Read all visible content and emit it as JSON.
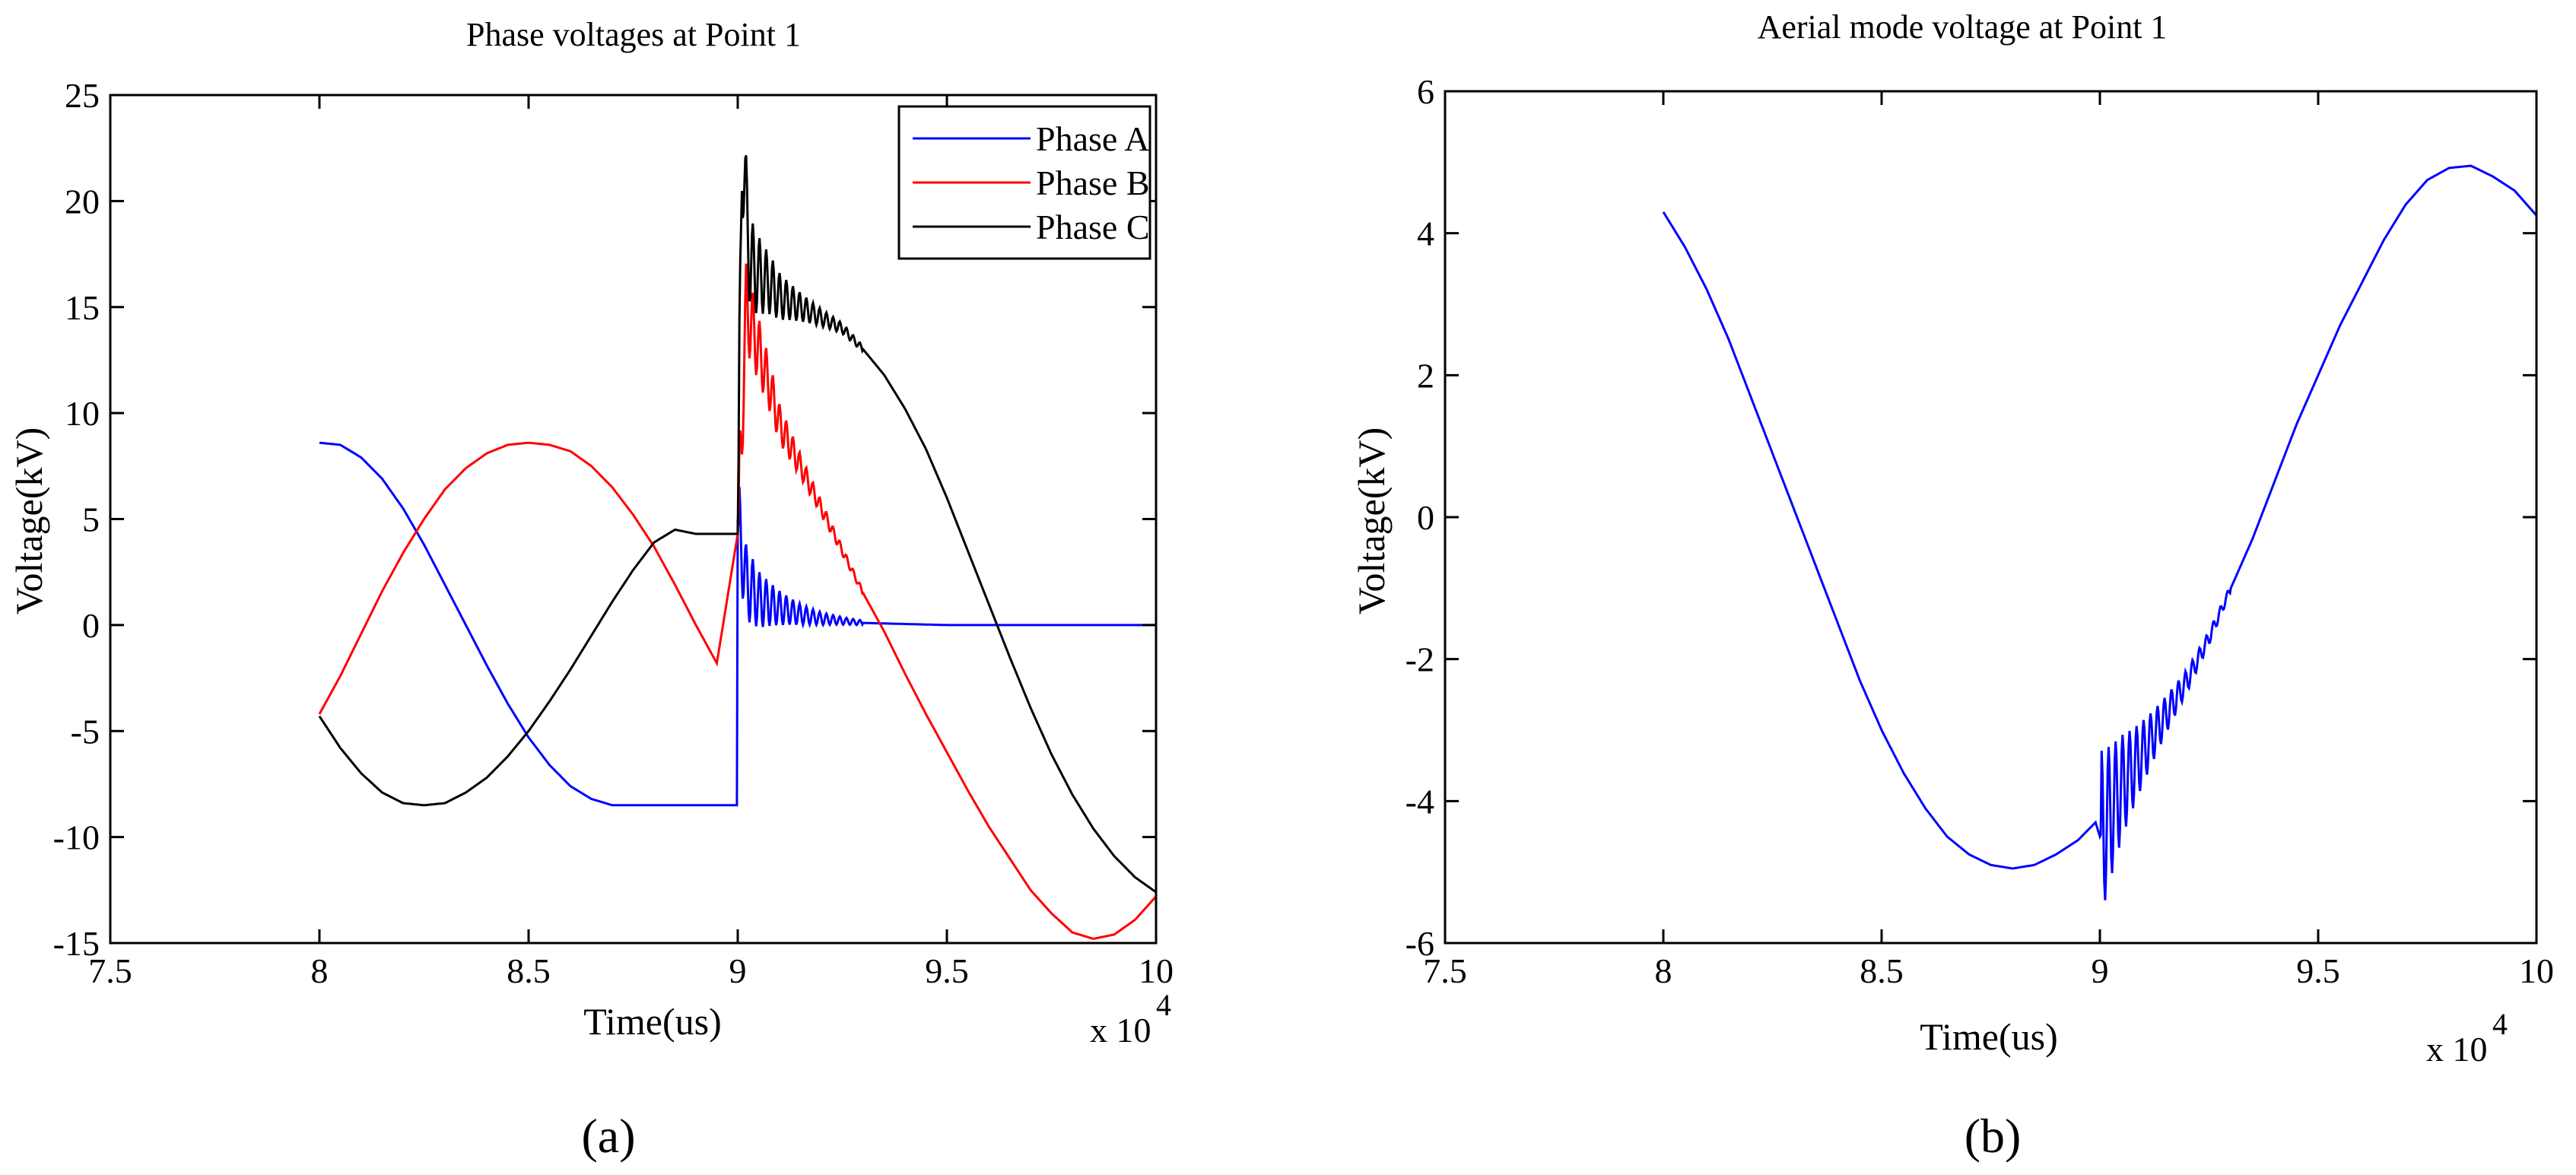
{
  "colors": {
    "phase_a": "#0000ff",
    "phase_b": "#ff0000",
    "phase_c": "#000000",
    "aerial": "#0000ff"
  },
  "chart_data": [
    {
      "type": "line",
      "title": "Phase voltages at Point 1",
      "xlabel": "Time(us)",
      "ylabel": "Voltage(kV)",
      "x_multiplier": "x 10",
      "x_multiplier_exp": "4",
      "xlim": [
        7.5,
        10
      ],
      "ylim": [
        -15,
        25
      ],
      "xticks": [
        7.5,
        8,
        8.5,
        9,
        9.5,
        10
      ],
      "xtick_labels": [
        "7.5",
        "8",
        "8.5",
        "9",
        "9.5",
        "10"
      ],
      "yticks": [
        -15,
        -10,
        -5,
        0,
        5,
        10,
        15,
        20,
        25
      ],
      "ytick_labels": [
        "-15",
        "-10",
        "-5",
        "0",
        "5",
        "10",
        "15",
        "20",
        "25"
      ],
      "grid": false,
      "legend_position": "top-right",
      "panel_label": "(a)",
      "series": [
        {
          "name": "Phase A",
          "color": "#0000ff",
          "x": [
            8.0,
            8.05,
            8.1,
            8.15,
            8.2,
            8.25,
            8.3,
            8.35,
            8.4,
            8.45,
            8.5,
            8.55,
            8.6,
            8.65,
            8.7,
            8.75,
            8.8,
            8.85,
            8.9,
            8.95,
            8.995,
            8.998,
            9.0,
            9.02,
            9.05,
            9.1,
            9.15,
            9.2,
            9.3,
            9.4,
            9.5,
            9.6,
            9.7,
            9.8,
            9.9,
            10.0
          ],
          "y": [
            8.6,
            8.5,
            7.9,
            6.9,
            5.5,
            3.8,
            1.9,
            0.0,
            -1.9,
            -3.7,
            -5.3,
            -6.6,
            -7.6,
            -8.2,
            -8.5,
            -8.5,
            -8.5,
            -8.5,
            -8.5,
            -8.5,
            -8.5,
            -8.5,
            5.0,
            2.0,
            1.2,
            0.8,
            0.5,
            0.3,
            0.1,
            0.05,
            0.0,
            0.0,
            0.0,
            0.0,
            0.0,
            0.0
          ]
        },
        {
          "name": "Phase B",
          "color": "#ff0000",
          "x": [
            8.0,
            8.05,
            8.1,
            8.15,
            8.2,
            8.25,
            8.3,
            8.35,
            8.4,
            8.45,
            8.5,
            8.55,
            8.6,
            8.65,
            8.7,
            8.75,
            8.8,
            8.85,
            8.9,
            8.95,
            9.0,
            9.02,
            9.05,
            9.08,
            9.1,
            9.15,
            9.2,
            9.25,
            9.3,
            9.35,
            9.4,
            9.45,
            9.5,
            9.55,
            9.6,
            9.65,
            9.7,
            9.75,
            9.8,
            9.85,
            9.9,
            9.95,
            10.0
          ],
          "y": [
            -4.2,
            -2.4,
            -0.4,
            1.6,
            3.4,
            5.0,
            6.4,
            7.4,
            8.1,
            8.5,
            8.6,
            8.5,
            8.2,
            7.5,
            6.5,
            5.2,
            3.7,
            1.9,
            0.0,
            -1.8,
            4.3,
            15.0,
            13.0,
            11.0,
            9.5,
            7.5,
            5.5,
            3.5,
            1.5,
            -0.3,
            -2.3,
            -4.2,
            -6.0,
            -7.8,
            -9.5,
            -11.0,
            -12.5,
            -13.6,
            -14.5,
            -14.8,
            -14.6,
            -13.9,
            -12.8
          ]
        },
        {
          "name": "Phase C",
          "color": "#000000",
          "x": [
            8.0,
            8.05,
            8.1,
            8.15,
            8.2,
            8.25,
            8.3,
            8.35,
            8.4,
            8.45,
            8.5,
            8.55,
            8.6,
            8.65,
            8.7,
            8.75,
            8.8,
            8.85,
            8.9,
            8.95,
            9.0,
            9.01,
            9.03,
            9.05,
            9.08,
            9.1,
            9.15,
            9.2,
            9.25,
            9.3,
            9.35,
            9.4,
            9.45,
            9.5,
            9.55,
            9.6,
            9.65,
            9.7,
            9.75,
            9.8,
            9.85,
            9.9,
            9.95,
            10.0
          ],
          "y": [
            -4.3,
            -5.8,
            -7.0,
            -7.9,
            -8.4,
            -8.5,
            -8.4,
            -7.9,
            -7.2,
            -6.2,
            -5.0,
            -3.6,
            -2.1,
            -0.5,
            1.1,
            2.6,
            3.9,
            4.5,
            4.3,
            4.3,
            4.3,
            22.4,
            17.0,
            16.5,
            16.0,
            15.5,
            15.0,
            14.5,
            14.0,
            13.0,
            11.8,
            10.2,
            8.3,
            6.0,
            3.5,
            1.0,
            -1.5,
            -3.9,
            -6.1,
            -8.0,
            -9.6,
            -10.9,
            -11.9,
            -12.6
          ]
        }
      ],
      "transient": {
        "start": 9.0,
        "end": 9.3,
        "period": 0.016,
        "phase_c_amplitude": 3.0,
        "phase_b_amplitude": 2.5,
        "phase_a_amplitude": 2.2
      }
    },
    {
      "type": "line",
      "title": "Aerial mode voltage at Point 1",
      "xlabel": "Time(us)",
      "ylabel": "Voltage(kV)",
      "x_multiplier": "x 10",
      "x_multiplier_exp": "4",
      "xlim": [
        7.5,
        10
      ],
      "ylim": [
        -6,
        6
      ],
      "xticks": [
        7.5,
        8,
        8.5,
        9,
        9.5,
        10
      ],
      "xtick_labels": [
        "7.5",
        "8",
        "8.5",
        "9",
        "9.5",
        "10"
      ],
      "yticks": [
        -6,
        -4,
        -2,
        0,
        2,
        4,
        6
      ],
      "ytick_labels": [
        "-6",
        "-4",
        "-2",
        "0",
        "2",
        "4",
        "6"
      ],
      "grid": false,
      "panel_label": "(b)",
      "series": [
        {
          "name": "Aerial mode",
          "color": "#0000ff",
          "x": [
            8.0,
            8.05,
            8.1,
            8.15,
            8.2,
            8.25,
            8.3,
            8.35,
            8.4,
            8.45,
            8.5,
            8.55,
            8.6,
            8.65,
            8.7,
            8.75,
            8.8,
            8.85,
            8.9,
            8.95,
            8.99,
            9.0,
            9.05,
            9.1,
            9.15,
            9.2,
            9.25,
            9.3,
            9.35,
            9.4,
            9.45,
            9.5,
            9.55,
            9.6,
            9.65,
            9.7,
            9.75,
            9.8,
            9.85,
            9.9,
            9.95,
            10.0
          ],
          "y": [
            4.3,
            3.8,
            3.2,
            2.5,
            1.7,
            0.9,
            0.1,
            -0.7,
            -1.5,
            -2.3,
            -3.0,
            -3.6,
            -4.1,
            -4.5,
            -4.75,
            -4.9,
            -4.95,
            -4.9,
            -4.75,
            -4.55,
            -4.3,
            -4.5,
            -3.8,
            -3.3,
            -2.8,
            -2.3,
            -1.7,
            -1.0,
            -0.3,
            0.5,
            1.3,
            2.0,
            2.7,
            3.3,
            3.9,
            4.4,
            4.75,
            4.92,
            4.95,
            4.8,
            4.6,
            4.25
          ]
        }
      ],
      "transient": {
        "start": 9.0,
        "end": 9.3,
        "period": 0.016,
        "amplitude": 1.2
      }
    }
  ]
}
